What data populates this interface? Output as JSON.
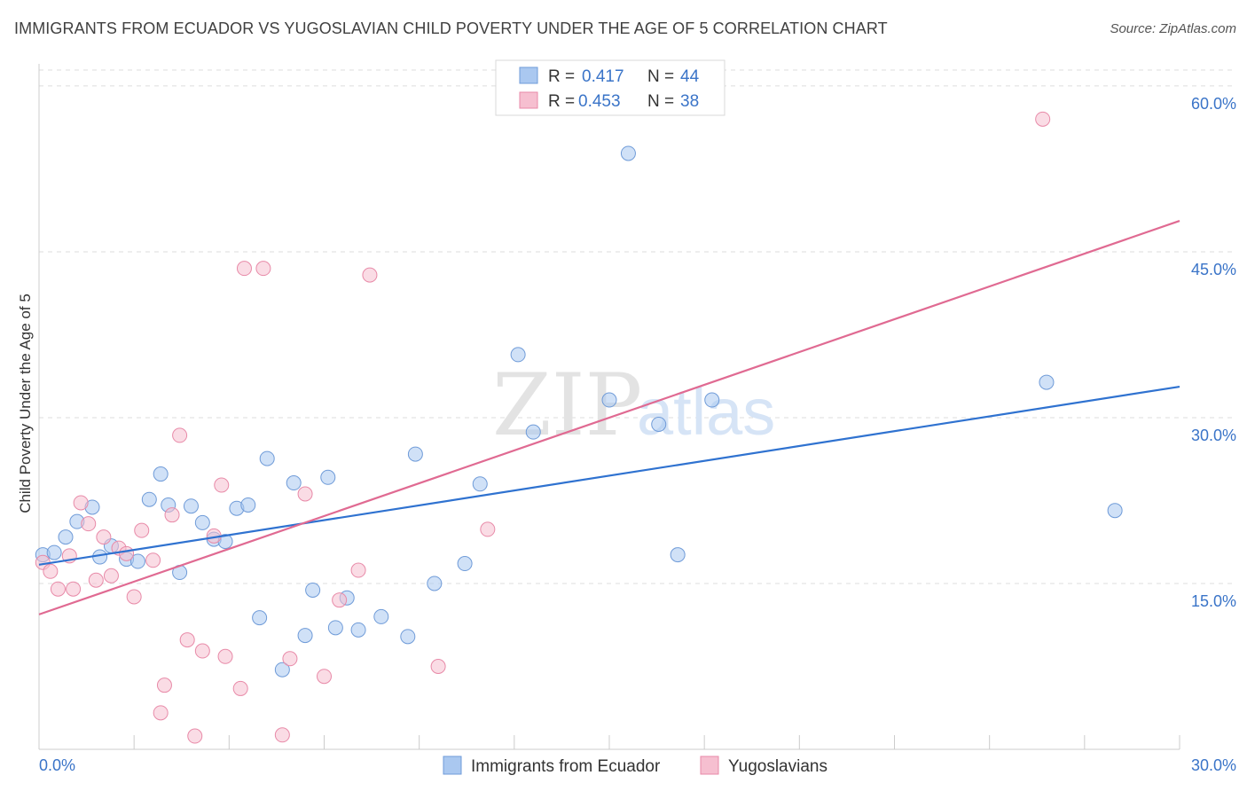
{
  "title": "IMMIGRANTS FROM ECUADOR VS YUGOSLAVIAN CHILD POVERTY UNDER THE AGE OF 5 CORRELATION CHART",
  "source": "Source: ZipAtlas.com",
  "watermark": {
    "zip": "ZIP",
    "atlas": "atlas"
  },
  "colors": {
    "blue_fill": "#aac8f0",
    "blue_stroke": "#6f9bd8",
    "blue_line": "#2f72d0",
    "pink_fill": "#f6bfd0",
    "pink_stroke": "#e88aa8",
    "pink_line": "#e06a92",
    "value_text": "#3a74c8",
    "grid": "#dddddd"
  },
  "legend": {
    "rows": [
      {
        "r_label": "R =",
        "r_value": "0.417",
        "n_label": "N =",
        "n_value": "44"
      },
      {
        "r_label": "R =",
        "r_value": "0.453",
        "n_label": "N =",
        "n_value": "38"
      }
    ]
  },
  "chart_data": {
    "type": "scatter",
    "xlabel": "",
    "ylabel": "Child Poverty Under the Age of 5",
    "xlim": [
      0,
      30
    ],
    "ylim": [
      0,
      62
    ],
    "x_tick_labels": [
      "0.0%",
      "30.0%"
    ],
    "y_tick_labels": [
      {
        "value": 15,
        "label": "15.0%"
      },
      {
        "value": 30,
        "label": "30.0%"
      },
      {
        "value": 45,
        "label": "45.0%"
      },
      {
        "value": 60,
        "label": "60.0%"
      }
    ],
    "series": [
      {
        "name": "Immigrants from Ecuador",
        "color": "#aac8f0",
        "trend": {
          "x0": 0,
          "y0": 16.7,
          "x1": 30,
          "y1": 32.8
        },
        "points": [
          [
            0.1,
            17.6
          ],
          [
            0.4,
            17.8
          ],
          [
            0.7,
            19.2
          ],
          [
            1.0,
            20.6
          ],
          [
            1.4,
            21.9
          ],
          [
            1.6,
            17.4
          ],
          [
            1.9,
            18.4
          ],
          [
            2.3,
            17.2
          ],
          [
            2.6,
            17.0
          ],
          [
            2.9,
            22.6
          ],
          [
            3.2,
            24.9
          ],
          [
            3.4,
            22.1
          ],
          [
            3.7,
            16.0
          ],
          [
            4.0,
            22.0
          ],
          [
            4.3,
            20.5
          ],
          [
            4.6,
            19.0
          ],
          [
            4.9,
            18.8
          ],
          [
            5.2,
            21.8
          ],
          [
            5.5,
            22.1
          ],
          [
            5.8,
            11.9
          ],
          [
            6.0,
            26.3
          ],
          [
            6.4,
            7.2
          ],
          [
            6.7,
            24.1
          ],
          [
            7.0,
            10.3
          ],
          [
            7.2,
            14.4
          ],
          [
            7.6,
            24.6
          ],
          [
            7.8,
            11.0
          ],
          [
            8.1,
            13.7
          ],
          [
            8.4,
            10.8
          ],
          [
            9.0,
            12.0
          ],
          [
            9.7,
            10.2
          ],
          [
            9.9,
            26.7
          ],
          [
            10.4,
            15.0
          ],
          [
            11.2,
            16.8
          ],
          [
            11.6,
            24.0
          ],
          [
            12.6,
            35.7
          ],
          [
            13.0,
            28.7
          ],
          [
            15.0,
            31.6
          ],
          [
            15.5,
            53.9
          ],
          [
            16.3,
            29.4
          ],
          [
            16.8,
            17.6
          ],
          [
            17.7,
            31.6
          ],
          [
            26.5,
            33.2
          ],
          [
            28.3,
            21.6
          ]
        ]
      },
      {
        "name": "Yugoslavians",
        "color": "#f6bfd0",
        "trend": {
          "x0": 0,
          "y0": 12.2,
          "x1": 30,
          "y1": 47.8
        },
        "points": [
          [
            0.1,
            16.9
          ],
          [
            0.3,
            16.1
          ],
          [
            0.5,
            14.5
          ],
          [
            0.8,
            17.5
          ],
          [
            0.9,
            14.5
          ],
          [
            1.1,
            22.3
          ],
          [
            1.3,
            20.4
          ],
          [
            1.5,
            15.3
          ],
          [
            1.7,
            19.2
          ],
          [
            1.9,
            15.7
          ],
          [
            2.1,
            18.2
          ],
          [
            2.3,
            17.7
          ],
          [
            2.5,
            13.8
          ],
          [
            2.7,
            19.8
          ],
          [
            3.0,
            17.1
          ],
          [
            3.2,
            3.3
          ],
          [
            3.3,
            5.8
          ],
          [
            3.5,
            21.2
          ],
          [
            3.7,
            28.4
          ],
          [
            3.9,
            9.9
          ],
          [
            4.1,
            1.2
          ],
          [
            4.3,
            8.9
          ],
          [
            4.6,
            19.3
          ],
          [
            4.8,
            23.9
          ],
          [
            4.9,
            8.4
          ],
          [
            5.3,
            5.5
          ],
          [
            5.4,
            43.5
          ],
          [
            5.9,
            43.5
          ],
          [
            6.4,
            1.3
          ],
          [
            6.6,
            8.2
          ],
          [
            7.0,
            23.1
          ],
          [
            7.5,
            6.6
          ],
          [
            7.9,
            13.5
          ],
          [
            8.4,
            16.2
          ],
          [
            8.7,
            42.9
          ],
          [
            10.5,
            7.5
          ],
          [
            11.8,
            19.9
          ],
          [
            26.4,
            57.0
          ]
        ]
      }
    ],
    "legend": {
      "position": "bottom-center"
    }
  }
}
